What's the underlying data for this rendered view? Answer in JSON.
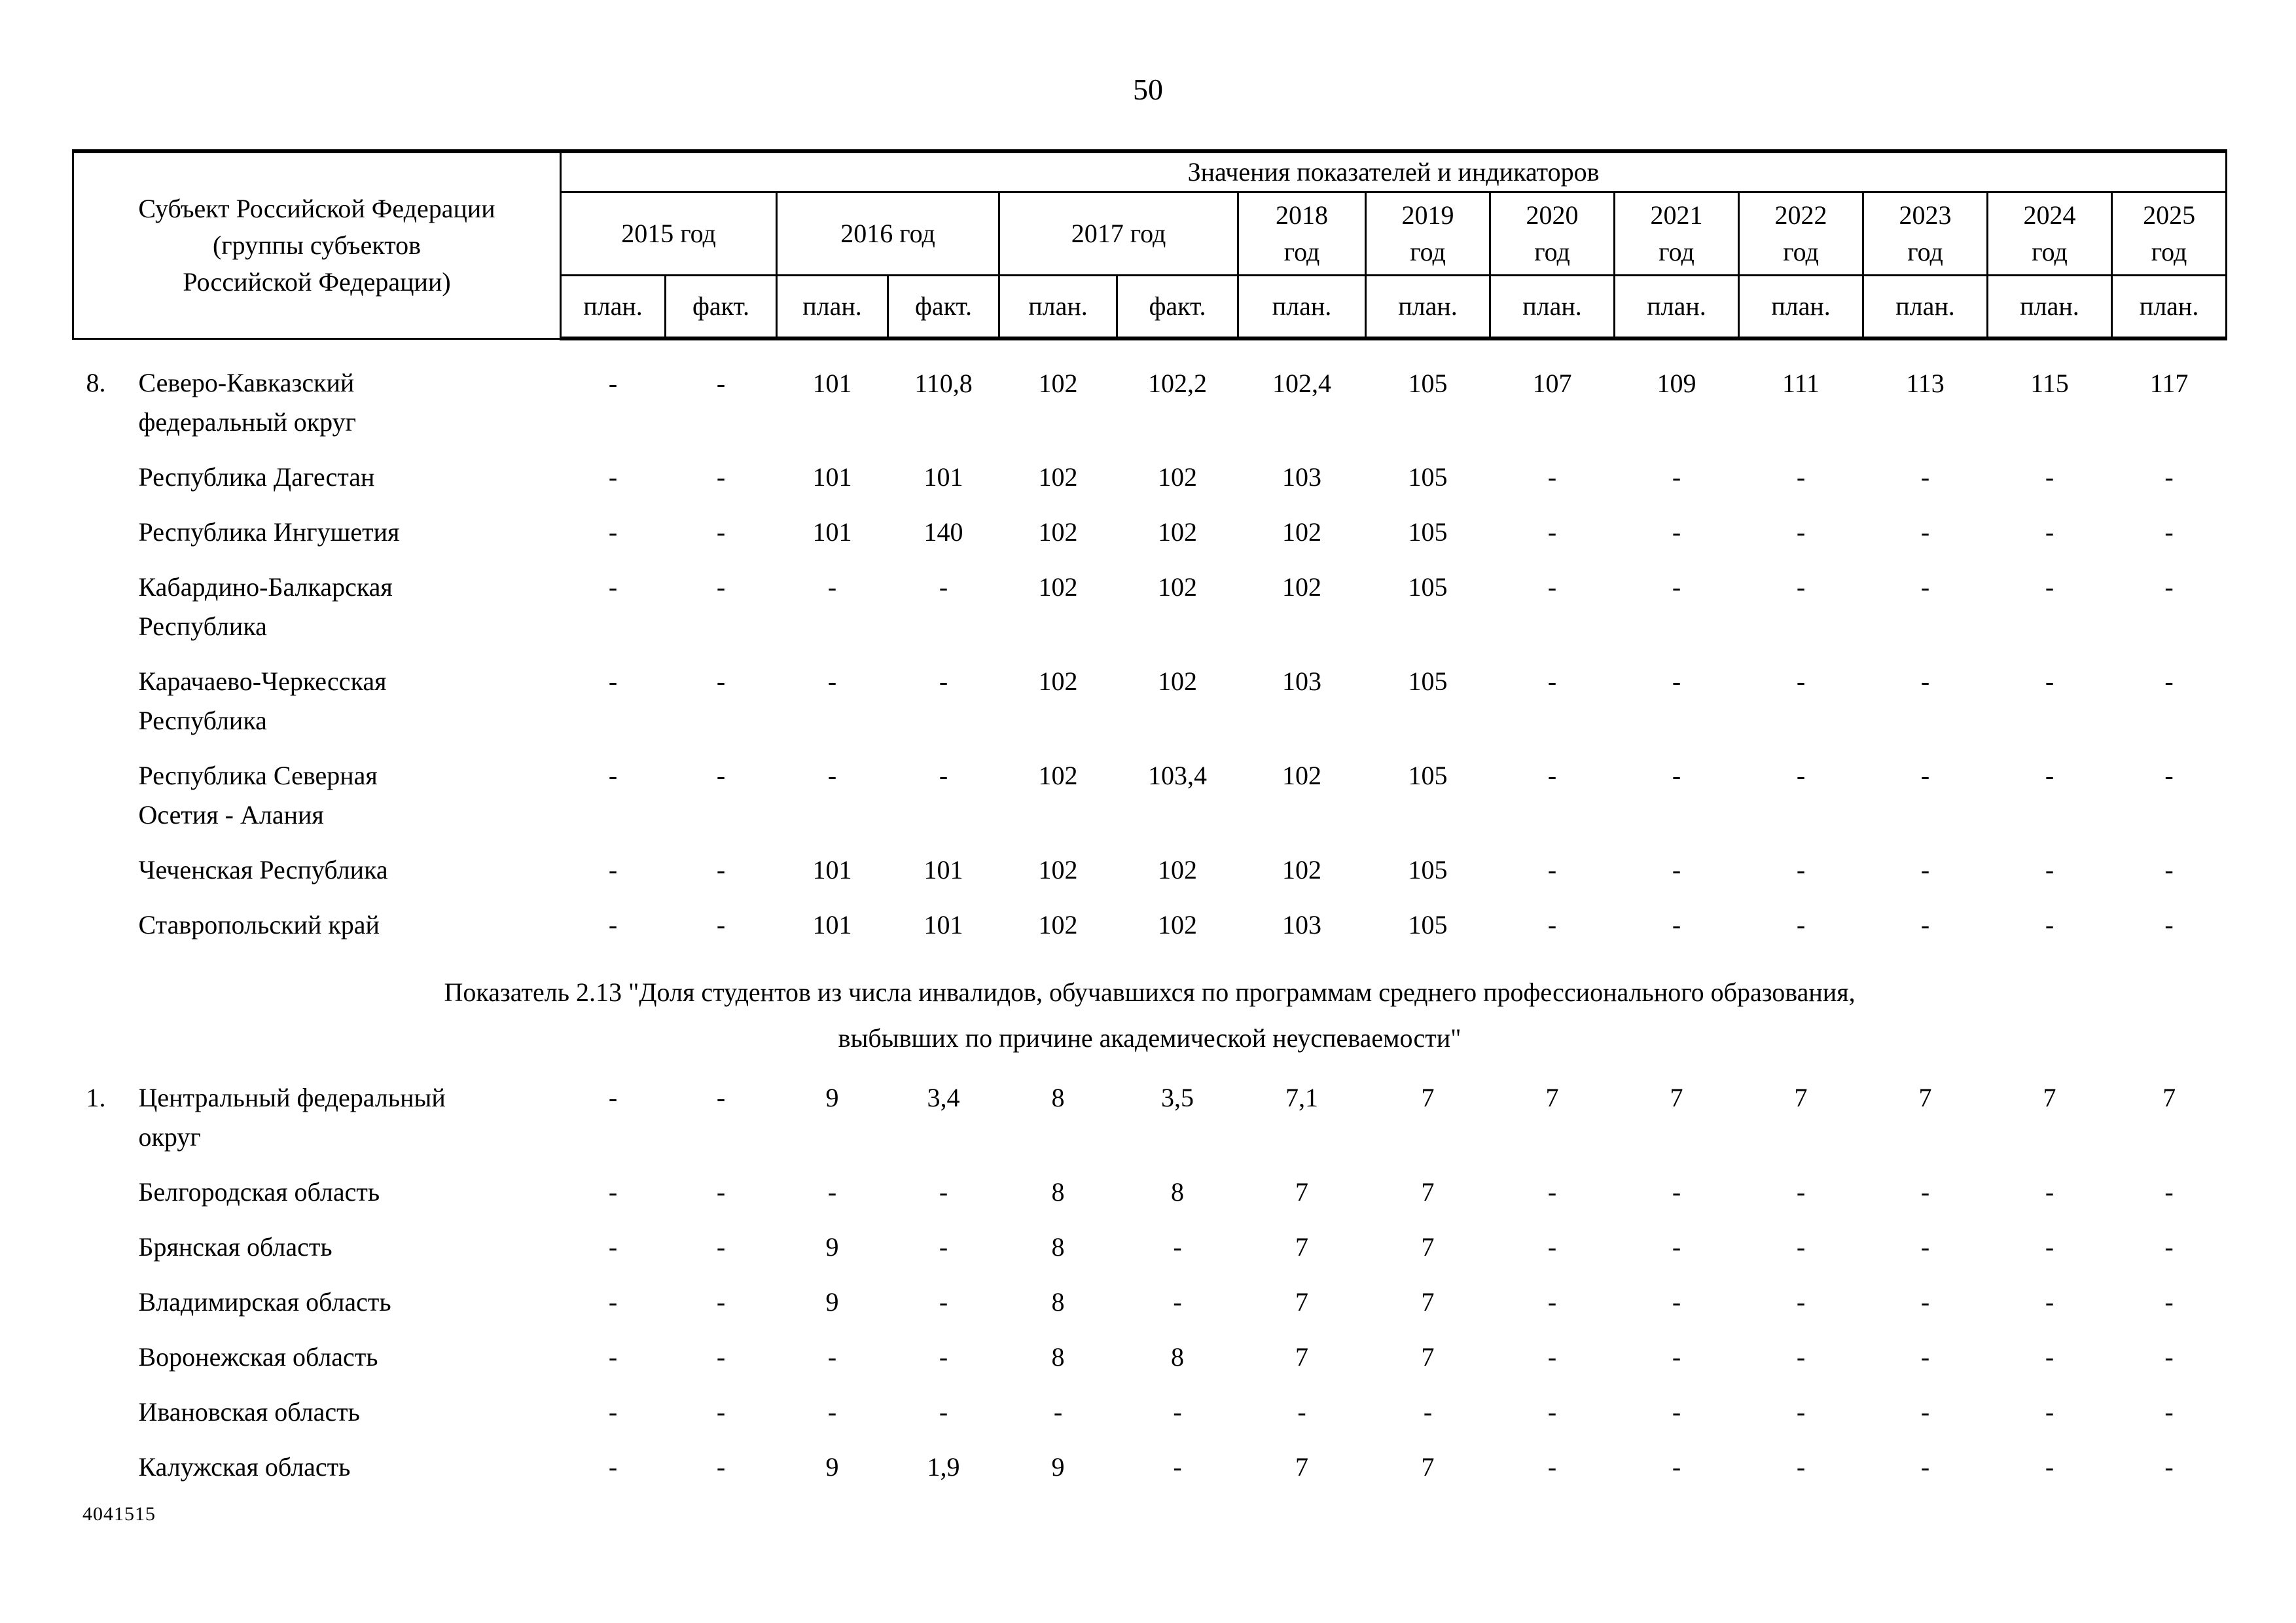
{
  "page": {
    "number": "50",
    "footer_code": "4041515"
  },
  "table": {
    "subject_header": "Субъект Российской Федерации\n(группы субъектов\nРоссийской Федерации)",
    "values_header": "Значения показателей и индикаторов",
    "year_groups": [
      {
        "label": "2015 год",
        "cols": 2
      },
      {
        "label": "2016 год",
        "cols": 2
      },
      {
        "label": "2017 год",
        "cols": 2
      },
      {
        "label": "2018\nгод",
        "cols": 1
      },
      {
        "label": "2019\nгод",
        "cols": 1
      },
      {
        "label": "2020\nгод",
        "cols": 1
      },
      {
        "label": "2021\nгод",
        "cols": 1
      },
      {
        "label": "2022\nгод",
        "cols": 1
      },
      {
        "label": "2023\nгод",
        "cols": 1
      },
      {
        "label": "2024\nгод",
        "cols": 1
      },
      {
        "label": "2025\nгод",
        "cols": 1
      }
    ],
    "sub_headers": [
      "план.",
      "факт.",
      "план.",
      "факт.",
      "план.",
      "факт.",
      "план.",
      "план.",
      "план.",
      "план.",
      "план.",
      "план.",
      "план.",
      "план."
    ],
    "sections": [
      {
        "title": "",
        "rows": [
          {
            "num": "8.",
            "name": "Северо-Кавказский\nфедеральный округ",
            "values": [
              "-",
              "-",
              "101",
              "110,8",
              "102",
              "102,2",
              "102,4",
              "105",
              "107",
              "109",
              "111",
              "113",
              "115",
              "117"
            ]
          },
          {
            "num": "",
            "name": "Республика Дагестан",
            "values": [
              "-",
              "-",
              "101",
              "101",
              "102",
              "102",
              "103",
              "105",
              "-",
              "-",
              "-",
              "-",
              "-",
              "-"
            ]
          },
          {
            "num": "",
            "name": "Республика Ингушетия",
            "values": [
              "-",
              "-",
              "101",
              "140",
              "102",
              "102",
              "102",
              "105",
              "-",
              "-",
              "-",
              "-",
              "-",
              "-"
            ]
          },
          {
            "num": "",
            "name": "Кабардино-Балкарская\nРеспублика",
            "values": [
              "-",
              "-",
              "-",
              "-",
              "102",
              "102",
              "102",
              "105",
              "-",
              "-",
              "-",
              "-",
              "-",
              "-"
            ]
          },
          {
            "num": "",
            "name": "Карачаево-Черкесская\nРеспублика",
            "values": [
              "-",
              "-",
              "-",
              "-",
              "102",
              "102",
              "103",
              "105",
              "-",
              "-",
              "-",
              "-",
              "-",
              "-"
            ]
          },
          {
            "num": "",
            "name": "Республика Северная\nОсетия - Алания",
            "values": [
              "-",
              "-",
              "-",
              "-",
              "102",
              "103,4",
              "102",
              "105",
              "-",
              "-",
              "-",
              "-",
              "-",
              "-"
            ]
          },
          {
            "num": "",
            "name": "Чеченская Республика",
            "values": [
              "-",
              "-",
              "101",
              "101",
              "102",
              "102",
              "102",
              "105",
              "-",
              "-",
              "-",
              "-",
              "-",
              "-"
            ]
          },
          {
            "num": "",
            "name": "Ставропольский край",
            "values": [
              "-",
              "-",
              "101",
              "101",
              "102",
              "102",
              "103",
              "105",
              "-",
              "-",
              "-",
              "-",
              "-",
              "-"
            ]
          }
        ]
      },
      {
        "title": "Показатель 2.13 \"Доля студентов из числа инвалидов, обучавшихся по программам среднего профессионального образования,\nвыбывших по причине академической неуспеваемости\"",
        "rows": [
          {
            "num": "1.",
            "name": "Центральный федеральный\nокруг",
            "values": [
              "-",
              "-",
              "9",
              "3,4",
              "8",
              "3,5",
              "7,1",
              "7",
              "7",
              "7",
              "7",
              "7",
              "7",
              "7"
            ]
          },
          {
            "num": "",
            "name": "Белгородская область",
            "values": [
              "-",
              "-",
              "-",
              "-",
              "8",
              "8",
              "7",
              "7",
              "-",
              "-",
              "-",
              "-",
              "-",
              "-"
            ]
          },
          {
            "num": "",
            "name": "Брянская область",
            "values": [
              "-",
              "-",
              "9",
              "-",
              "8",
              "-",
              "7",
              "7",
              "-",
              "-",
              "-",
              "-",
              "-",
              "-"
            ]
          },
          {
            "num": "",
            "name": "Владимирская область",
            "values": [
              "-",
              "-",
              "9",
              "-",
              "8",
              "-",
              "7",
              "7",
              "-",
              "-",
              "-",
              "-",
              "-",
              "-"
            ]
          },
          {
            "num": "",
            "name": "Воронежская область",
            "values": [
              "-",
              "-",
              "-",
              "-",
              "8",
              "8",
              "7",
              "7",
              "-",
              "-",
              "-",
              "-",
              "-",
              "-"
            ]
          },
          {
            "num": "",
            "name": "Ивановская область",
            "values": [
              "-",
              "-",
              "-",
              "-",
              "-",
              "-",
              "-",
              "-",
              "-",
              "-",
              "-",
              "-",
              "-",
              "-"
            ]
          },
          {
            "num": "",
            "name": "Калужская область",
            "values": [
              "-",
              "-",
              "9",
              "1,9",
              "9",
              "-",
              "7",
              "7",
              "-",
              "-",
              "-",
              "-",
              "-",
              "-"
            ]
          }
        ]
      }
    ]
  }
}
